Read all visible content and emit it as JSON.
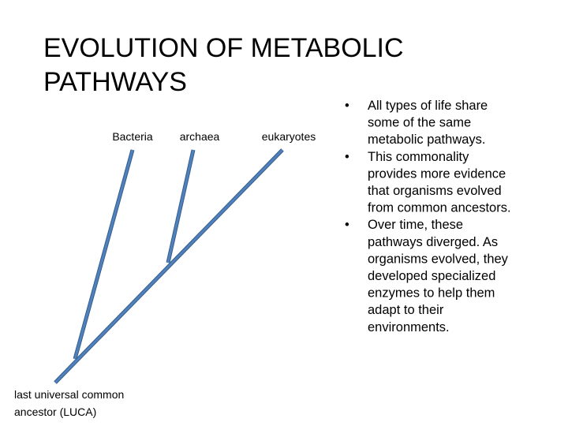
{
  "title": [
    "EVOLUTION OF METABOLIC",
    "PATHWAYS"
  ],
  "tree": {
    "leaves": [
      "Bacteria",
      "archaea",
      "eukaryotes"
    ],
    "root": [
      "last universal common",
      "ancestor (LUCA)"
    ]
  },
  "bullets": [
    [
      "All types of life share",
      "some of the same",
      "metabolic pathways."
    ],
    [
      "This commonality",
      "provides more evidence",
      "that organisms evolved",
      "from common ancestors."
    ],
    [
      "Over time, these",
      "pathways diverged.  As",
      "organisms evolved, they",
      "developed specialized",
      "enzymes to help them",
      "adapt to their",
      "environments."
    ]
  ]
}
